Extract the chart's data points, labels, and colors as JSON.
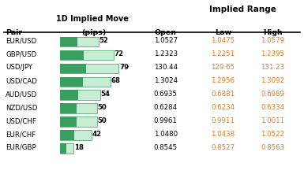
{
  "pairs": [
    "EUR/USD",
    "GBP/USD",
    "USD/JPY",
    "USD/CAD",
    "AUD/USD",
    "NZD/USD",
    "USD/CHF",
    "EUR/CHF",
    "EUR/GBP"
  ],
  "pips": [
    52,
    72,
    79,
    68,
    54,
    50,
    50,
    42,
    18
  ],
  "open_str": [
    "1.0527",
    "1.2323",
    "130.44",
    "1.3024",
    "0.6935",
    "0.6284",
    "0.9961",
    "1.0480",
    "0.8545"
  ],
  "low_str": [
    "1.0475",
    "1.2251",
    "129.65",
    "1.2956",
    "0.6881",
    "0.6234",
    "0.9911",
    "1.0438",
    "0.8527"
  ],
  "high_str": [
    "1.0579",
    "1.2395",
    "131.23",
    "1.3092",
    "0.6989",
    "0.6334",
    "1.0011",
    "1.0522",
    "0.8563"
  ],
  "max_pips": 79,
  "bar_color_dark": "#3a9e5f",
  "bar_color_light": "#c8ecd4",
  "highlight_color": "#e87722",
  "title_implied_range": "Implied Range",
  "col_pair": "Pair",
  "col_pips": "(pips)",
  "col_header1d": "1D Implied Move",
  "col_open": "Open",
  "col_low": "Low",
  "col_high": "High"
}
